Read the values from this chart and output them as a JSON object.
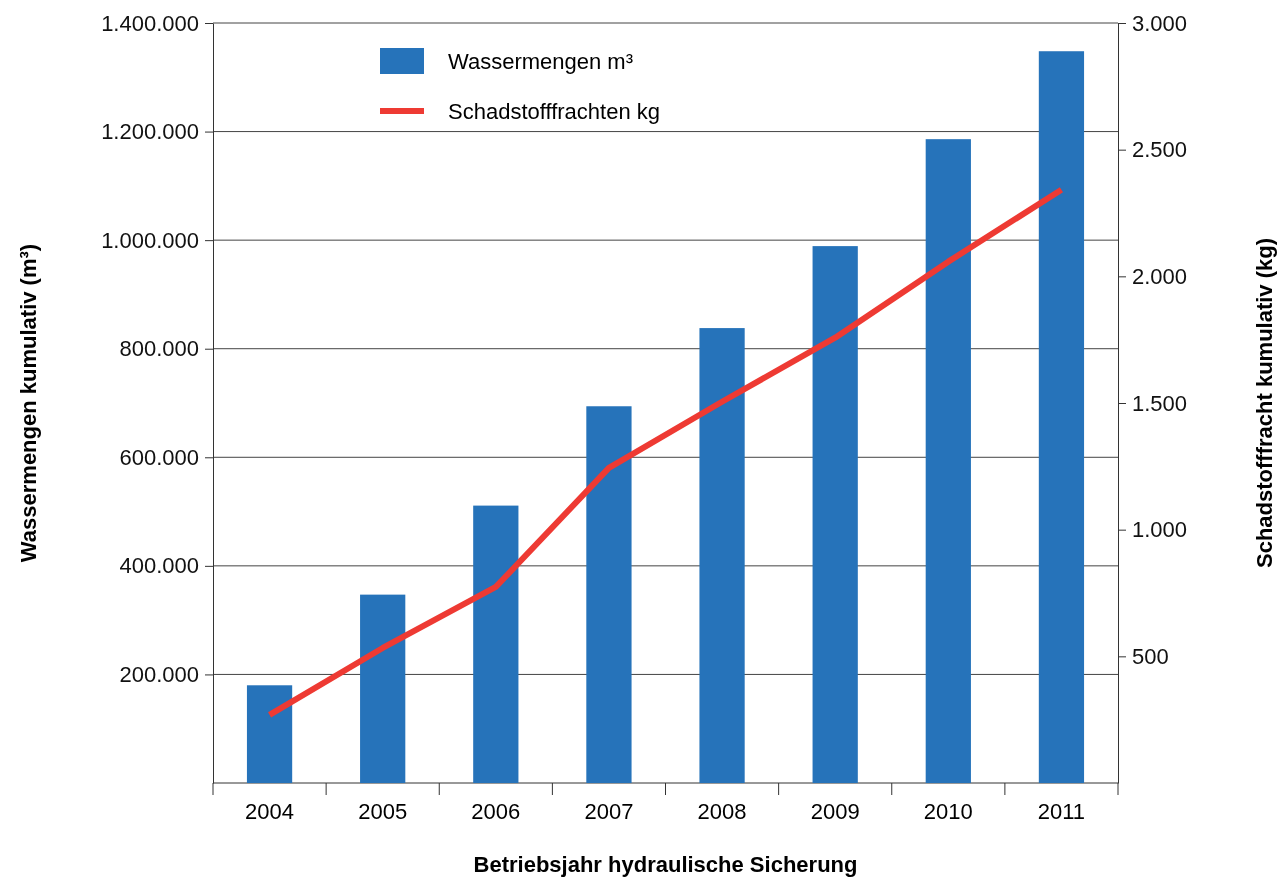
{
  "chart_data": {
    "type": "bar",
    "xlabel": "Betriebsjahr hydraulische Sicherung",
    "ylabel": "Wassermengen kumulativ (m³)",
    "y2label": "Schadstofffracht kumulativ (kg)",
    "categories": [
      "2004",
      "2005",
      "2006",
      "2007",
      "2008",
      "2009",
      "2010",
      "2011"
    ],
    "series": [
      {
        "name": "Wassermengen m³",
        "color": "#2673ba",
        "values": [
          180000,
          347000,
          511000,
          694000,
          838000,
          989000,
          1186000,
          1348000
        ]
      },
      {
        "name": "Schadstofffrachten kg",
        "type": "line",
        "axis": "y2",
        "color": "#ee3a33",
        "values": [
          269,
          533,
          774,
          1244,
          1505,
          1758,
          2058,
          2342
        ]
      }
    ],
    "ylim": [
      0,
      1400000
    ],
    "yticks": [
      {
        "value": 200000,
        "label": "200.000"
      },
      {
        "value": 400000,
        "label": "400.000"
      },
      {
        "value": 600000,
        "label": "600.000"
      },
      {
        "value": 800000,
        "label": "800.000"
      },
      {
        "value": 1000000,
        "label": "1.000.000"
      },
      {
        "value": 1200000,
        "label": "1.200.000"
      },
      {
        "value": 1400000,
        "label": "1.400.000"
      }
    ],
    "y2lim": [
      0,
      3000
    ],
    "y2ticks": [
      {
        "value": 500,
        "label": "500"
      },
      {
        "value": 1000,
        "label": "1.000"
      },
      {
        "value": 1500,
        "label": "1.500"
      },
      {
        "value": 2000,
        "label": "2.000"
      },
      {
        "value": 2500,
        "label": "2.500"
      },
      {
        "value": 3000,
        "label": "3.000"
      }
    ],
    "grid": "y",
    "legend": "top",
    "line_style": "solid",
    "marker": "none"
  }
}
